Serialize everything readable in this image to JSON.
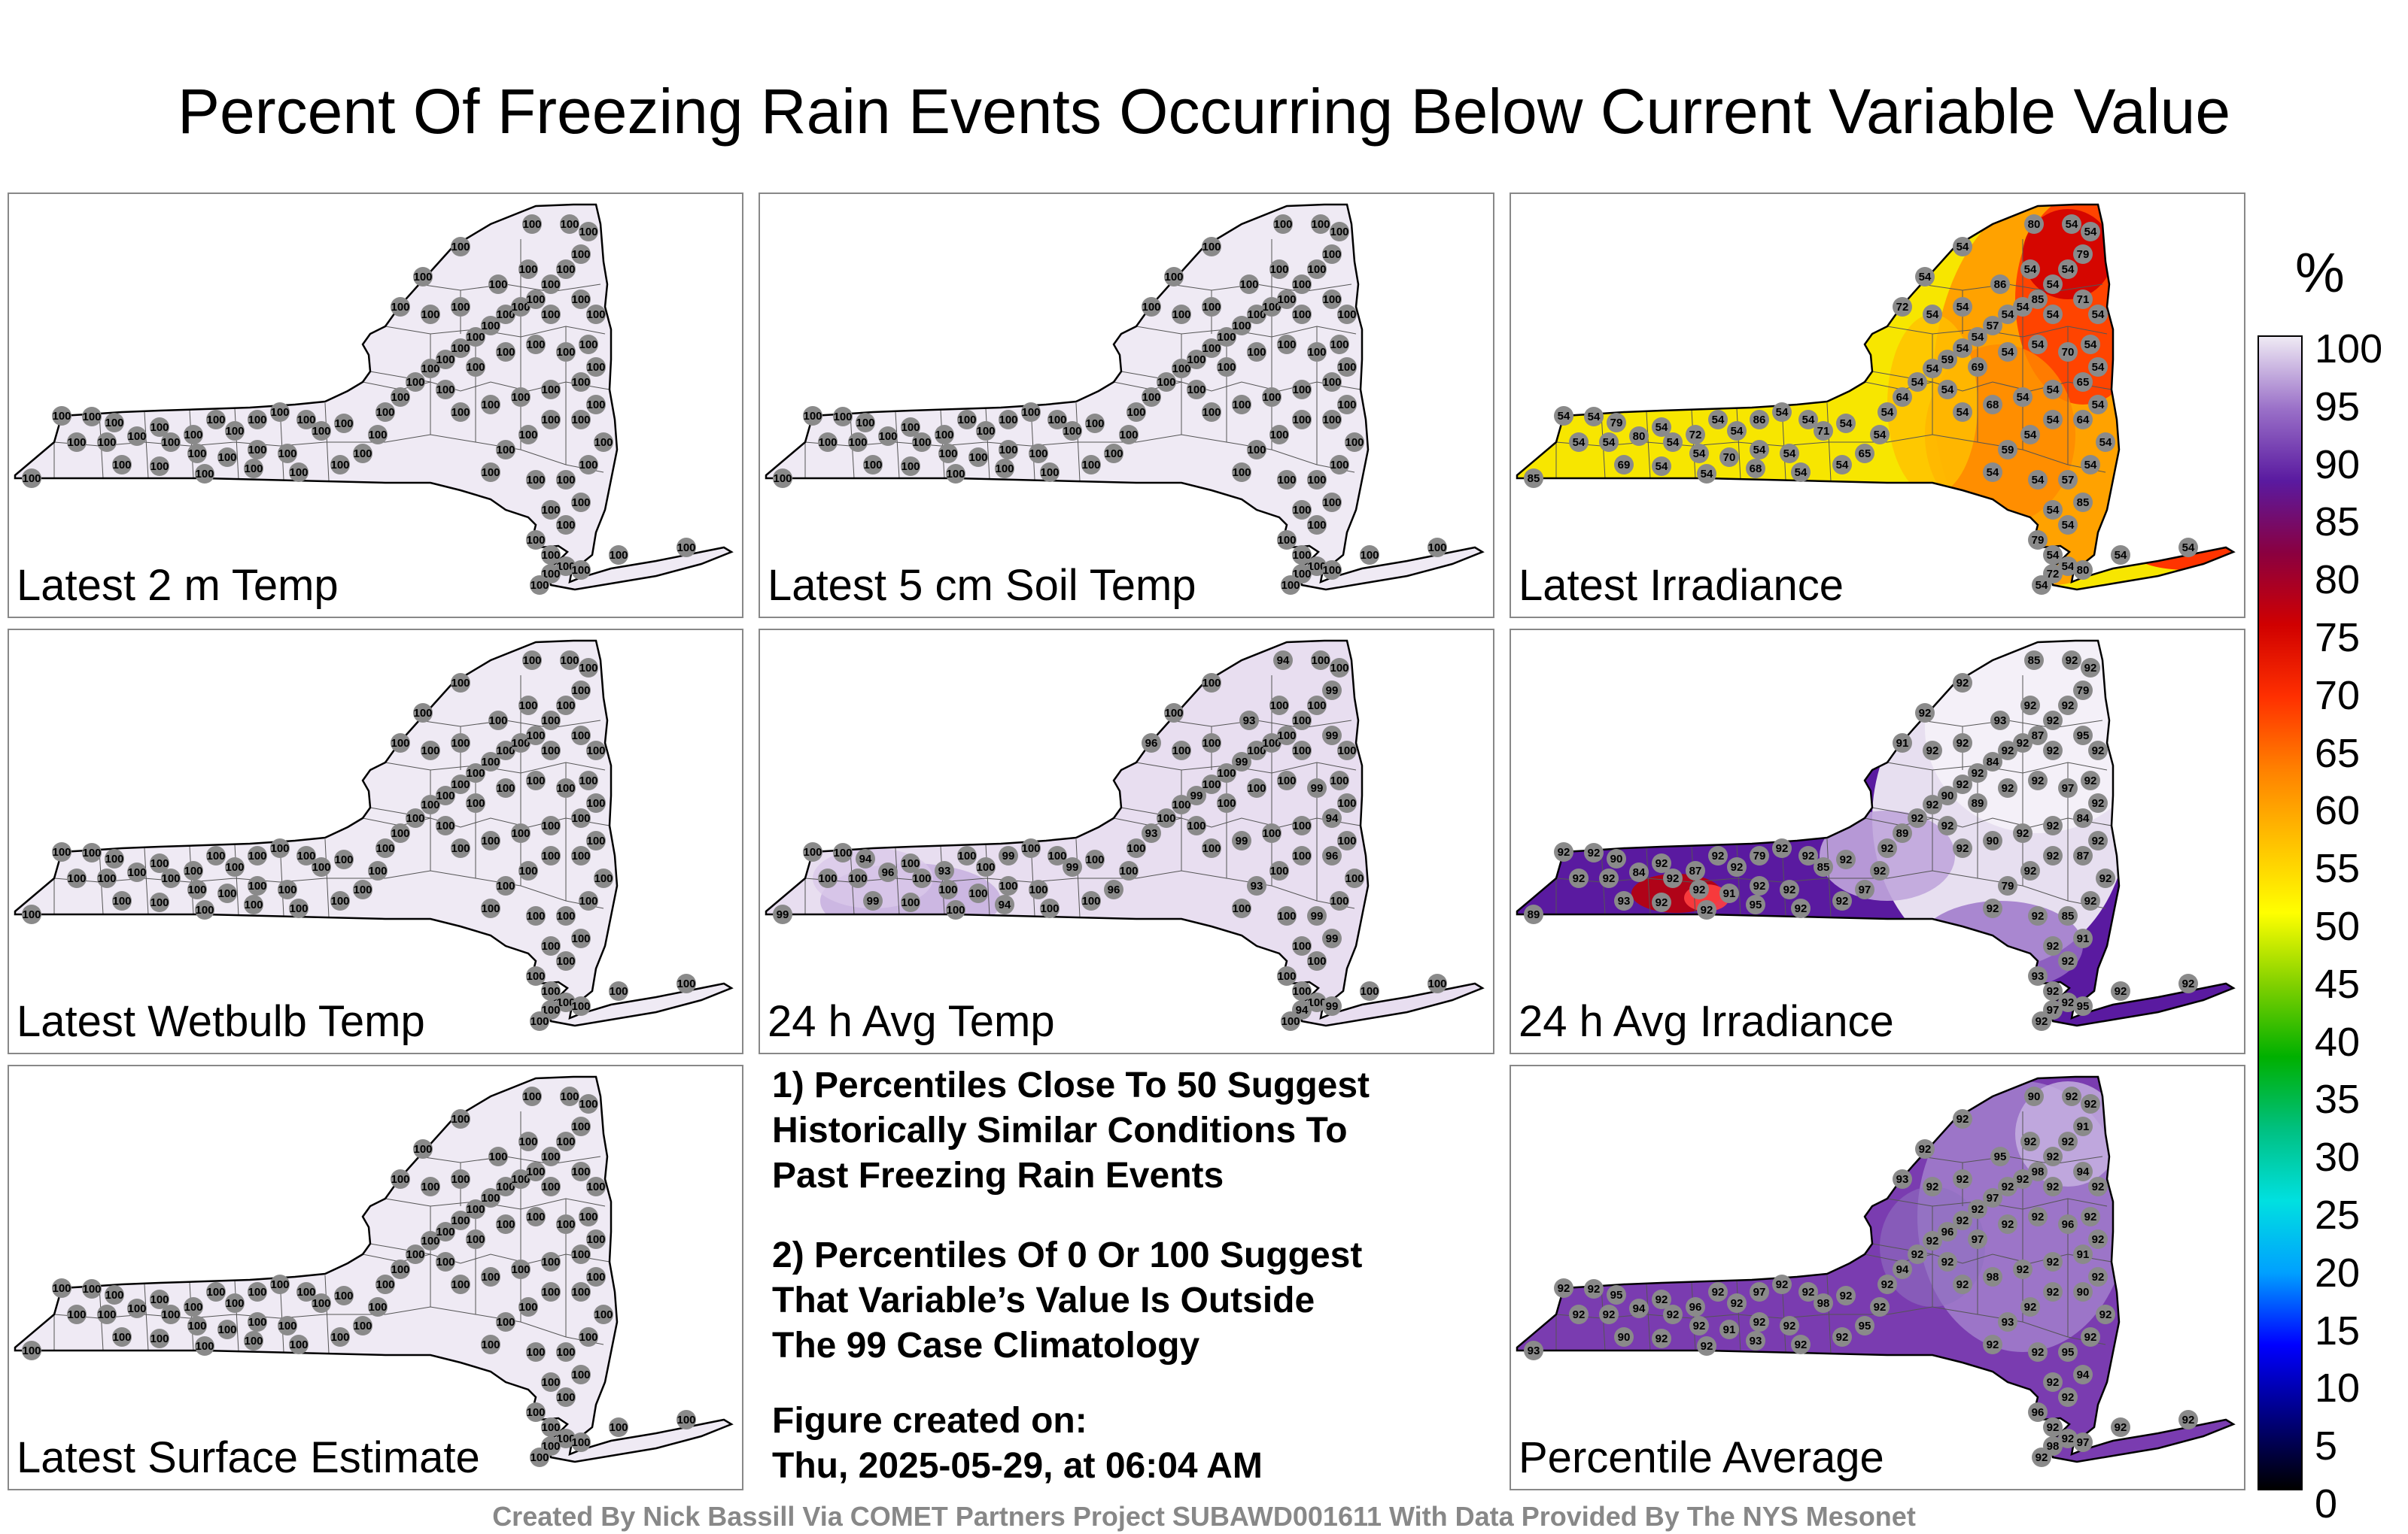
{
  "title": "Percent Of Freezing Rain Events Occurring Below Current Variable Value",
  "panels": [
    {
      "label": "Latest 2 m Temp",
      "scheme": "uniform",
      "shade": "#efeaf4",
      "value": "100"
    },
    {
      "label": "Latest 5 cm Soil Temp",
      "scheme": "uniform",
      "shade": "#efeaf4",
      "value": "100"
    },
    {
      "label": "Latest Irradiance",
      "scheme": "irradiance",
      "shade": "#f7e600",
      "value": "54",
      "hot_values": [
        "85",
        "79",
        "80",
        "72",
        "86",
        "71",
        "70",
        "69",
        "68",
        "65",
        "64",
        "59",
        "57"
      ]
    },
    {
      "label": "Latest Wetbulb Temp",
      "scheme": "uniform",
      "shade": "#efeaf4",
      "value": "100"
    },
    {
      "label": "24 h Avg Temp",
      "scheme": "avgtemp",
      "shade": "#e8def0",
      "value": "100",
      "hot_values": [
        "99",
        "94",
        "96",
        "93",
        "99",
        "99",
        "100"
      ]
    },
    {
      "label": "24 h Avg Irradiance",
      "scheme": "avgirr",
      "shade": "#5a1aa0",
      "value": "92",
      "hot_values": [
        "89",
        "90",
        "84",
        "87",
        "79",
        "85",
        "91",
        "93",
        "95",
        "97"
      ]
    },
    {
      "label": "Latest Surface Estimate",
      "scheme": "uniform",
      "shade": "#efeaf4",
      "value": "100"
    },
    {
      "label": "Percentile Average",
      "scheme": "average",
      "shade": "#7a3cb0",
      "value": "92",
      "hot_values": [
        "93",
        "95",
        "94",
        "96",
        "97",
        "98",
        "91",
        "90"
      ]
    }
  ],
  "notes": {
    "n1": [
      "1) Percentiles Close To 50 Suggest",
      "Historically Similar Conditions To",
      "Past Freezing Rain Events"
    ],
    "n2": [
      "2) Percentiles Of 0 Or 100 Suggest",
      "That Variable’s Value Is Outside",
      "The 99 Case Climatology"
    ],
    "n3": [
      "Figure created on:",
      "Thu, 2025-05-29, at 06:04 AM"
    ]
  },
  "colorbar": {
    "unit": "%",
    "ticks": [
      "100",
      "95",
      "90",
      "85",
      "80",
      "75",
      "70",
      "65",
      "60",
      "55",
      "50",
      "45",
      "40",
      "35",
      "30",
      "25",
      "20",
      "15",
      "10",
      "5",
      "0"
    ],
    "colors": [
      "#000000",
      "#000080",
      "#0000ff",
      "#00a0ff",
      "#00e0e0",
      "#00c080",
      "#00b000",
      "#80d000",
      "#ffff00",
      "#ffc000",
      "#ff8000",
      "#ff3000",
      "#d00000",
      "#8a0040",
      "#5a1aa0",
      "#9a70c8",
      "#efeaf4"
    ]
  },
  "credit": "Created By Nick Bassill Via COMET Partners Project SUBAWD001611 With Data Provided By The NYS Mesonet"
}
